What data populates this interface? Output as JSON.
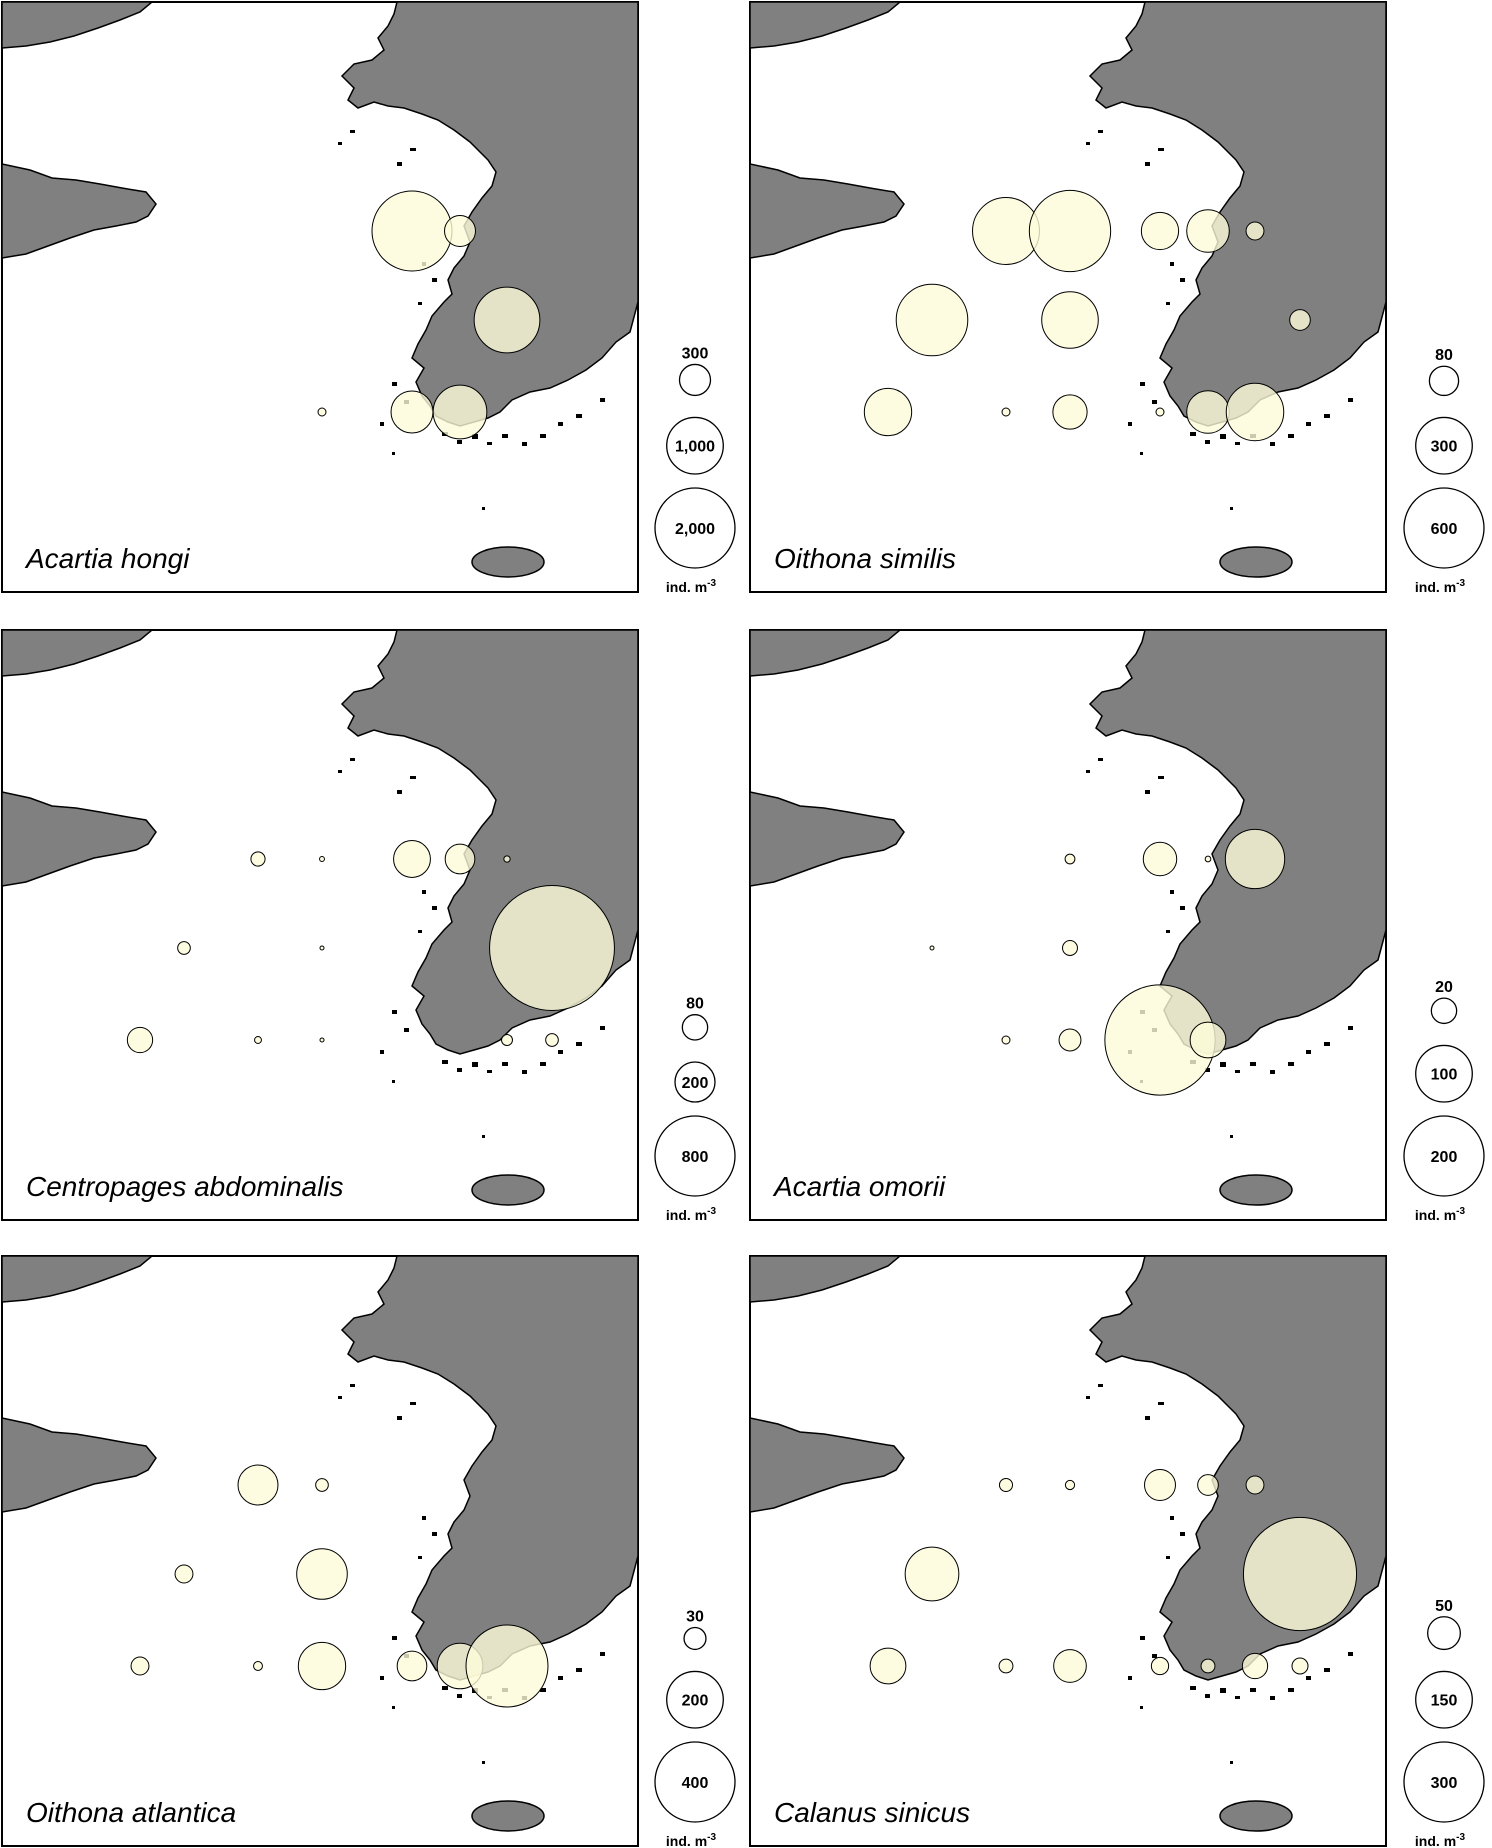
{
  "colors": {
    "land": "#808080",
    "bubble": "#fcfbd9",
    "sea": "#ffffff"
  },
  "unit_base": "ind. m",
  "unit_exp": "-3",
  "panels": [
    {
      "species": "Acartia hongi",
      "legend": [
        {
          "label": "300",
          "value": 300
        },
        {
          "label": "1,000",
          "value": 1000
        },
        {
          "label": "2,000",
          "value": 2000
        }
      ],
      "stations": [
        {
          "row": 1,
          "col": 7,
          "value": 2000
        },
        {
          "row": 1,
          "col": 8,
          "value": 300
        },
        {
          "row": 2,
          "col": 9,
          "value": 1350
        },
        {
          "row": 3,
          "col": 6,
          "value": 20
        },
        {
          "row": 3,
          "col": 7,
          "value": 550
        },
        {
          "row": 3,
          "col": 8,
          "value": 900
        }
      ]
    },
    {
      "species": "Oithona similis",
      "legend": [
        {
          "label": "80",
          "value": 80
        },
        {
          "label": "300",
          "value": 300
        },
        {
          "label": "600",
          "value": 600
        }
      ],
      "stations": [
        {
          "row": 1,
          "col": 5,
          "value": 420
        },
        {
          "row": 1,
          "col": 6,
          "value": 620
        },
        {
          "row": 1,
          "col": 7,
          "value": 130
        },
        {
          "row": 1,
          "col": 8,
          "value": 170
        },
        {
          "row": 1,
          "col": 9,
          "value": 30
        },
        {
          "row": 2,
          "col": 4,
          "value": 480
        },
        {
          "row": 2,
          "col": 6,
          "value": 300
        },
        {
          "row": 2,
          "col": 10,
          "value": 40
        },
        {
          "row": 3,
          "col": 3,
          "value": 210
        },
        {
          "row": 3,
          "col": 5,
          "value": 6
        },
        {
          "row": 3,
          "col": 6,
          "value": 110
        },
        {
          "row": 3,
          "col": 7,
          "value": 6
        },
        {
          "row": 3,
          "col": 8,
          "value": 170
        },
        {
          "row": 3,
          "col": 9,
          "value": 310
        }
      ]
    },
    {
      "species": "Centropages abdominalis",
      "legend": [
        {
          "label": "80",
          "value": 80
        },
        {
          "label": "200",
          "value": 200
        },
        {
          "label": "800",
          "value": 800
        }
      ],
      "stations": [
        {
          "row": 1,
          "col": 5,
          "value": 25
        },
        {
          "row": 1,
          "col": 6,
          "value": 3
        },
        {
          "row": 1,
          "col": 7,
          "value": 170
        },
        {
          "row": 1,
          "col": 8,
          "value": 110
        },
        {
          "row": 1,
          "col": 9,
          "value": 5
        },
        {
          "row": 2,
          "col": 4,
          "value": 20
        },
        {
          "row": 2,
          "col": 6,
          "value": 2
        },
        {
          "row": 2,
          "col": 10,
          "value": 1950
        },
        {
          "row": 3,
          "col": 3,
          "value": 80
        },
        {
          "row": 3,
          "col": 5,
          "value": 6
        },
        {
          "row": 3,
          "col": 6,
          "value": 2
        },
        {
          "row": 3,
          "col": 9,
          "value": 15
        },
        {
          "row": 3,
          "col": 10,
          "value": 20
        }
      ]
    },
    {
      "species": "Acartia omorii",
      "legend": [
        {
          "label": "20",
          "value": 20
        },
        {
          "label": "100",
          "value": 100
        },
        {
          "label": "200",
          "value": 200
        }
      ],
      "stations": [
        {
          "row": 1,
          "col": 6,
          "value": 3
        },
        {
          "row": 1,
          "col": 7,
          "value": 35
        },
        {
          "row": 1,
          "col": 8,
          "value": 1
        },
        {
          "row": 1,
          "col": 9,
          "value": 110
        },
        {
          "row": 2,
          "col": 4,
          "value": 0.5
        },
        {
          "row": 2,
          "col": 6,
          "value": 7
        },
        {
          "row": 3,
          "col": 5,
          "value": 2
        },
        {
          "row": 3,
          "col": 6,
          "value": 15
        },
        {
          "row": 3,
          "col": 7,
          "value": 380
        },
        {
          "row": 3,
          "col": 8,
          "value": 40
        }
      ]
    },
    {
      "species": "Oithona atlantica",
      "legend": [
        {
          "label": "30",
          "value": 30
        },
        {
          "label": "200",
          "value": 200
        },
        {
          "label": "400",
          "value": 400
        }
      ],
      "stations": [
        {
          "row": 1,
          "col": 5,
          "value": 100
        },
        {
          "row": 1,
          "col": 6,
          "value": 10
        },
        {
          "row": 2,
          "col": 4,
          "value": 20
        },
        {
          "row": 2,
          "col": 6,
          "value": 160
        },
        {
          "row": 3,
          "col": 3,
          "value": 20
        },
        {
          "row": 3,
          "col": 5,
          "value": 5
        },
        {
          "row": 3,
          "col": 6,
          "value": 140
        },
        {
          "row": 3,
          "col": 7,
          "value": 55
        },
        {
          "row": 3,
          "col": 8,
          "value": 130
        },
        {
          "row": 3,
          "col": 9,
          "value": 420
        }
      ]
    },
    {
      "species": "Calanus sinicus",
      "legend": [
        {
          "label": "50",
          "value": 50
        },
        {
          "label": "150",
          "value": 150
        },
        {
          "label": "300",
          "value": 300
        }
      ],
      "stations": [
        {
          "row": 1,
          "col": 5,
          "value": 8
        },
        {
          "row": 1,
          "col": 6,
          "value": 4
        },
        {
          "row": 1,
          "col": 7,
          "value": 45
        },
        {
          "row": 1,
          "col": 8,
          "value": 20
        },
        {
          "row": 1,
          "col": 9,
          "value": 15
        },
        {
          "row": 2,
          "col": 4,
          "value": 135
        },
        {
          "row": 2,
          "col": 10,
          "value": 600
        },
        {
          "row": 3,
          "col": 3,
          "value": 60
        },
        {
          "row": 3,
          "col": 5,
          "value": 9
        },
        {
          "row": 3,
          "col": 6,
          "value": 50
        },
        {
          "row": 3,
          "col": 7,
          "value": 14
        },
        {
          "row": 3,
          "col": 8,
          "value": 9
        },
        {
          "row": 3,
          "col": 9,
          "value": 30
        },
        {
          "row": 3,
          "col": 10,
          "value": 12
        }
      ]
    }
  ]
}
